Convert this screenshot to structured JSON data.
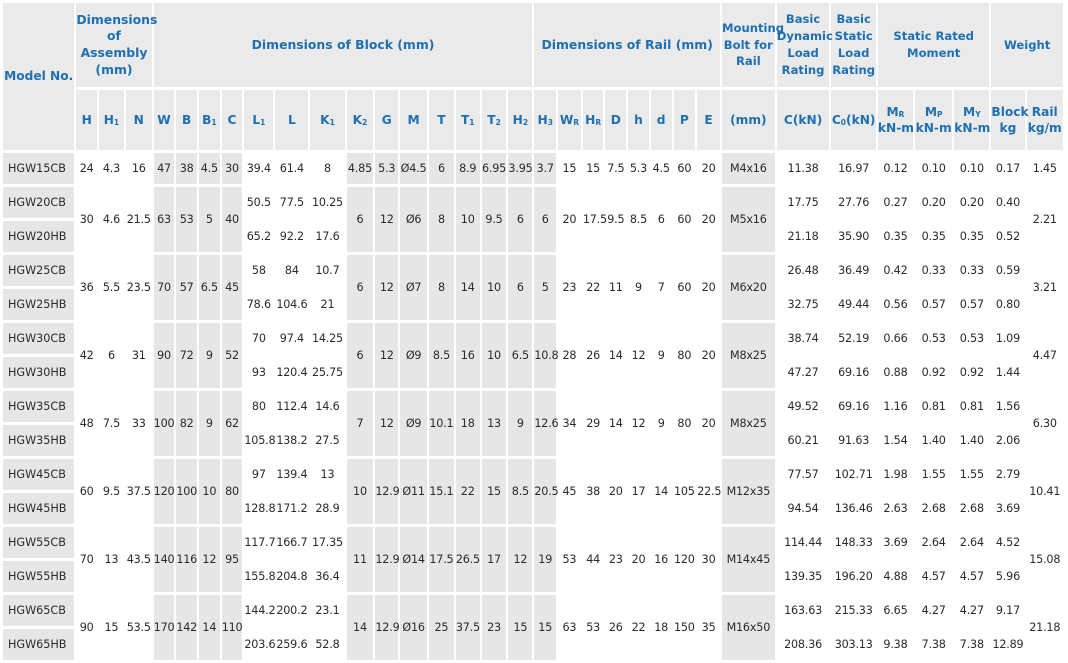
{
  "headers": {
    "model": "Model No.",
    "assembly": "Dimensions of Assembly (mm)",
    "block": "Dimensions of Block (mm)",
    "rail": "Dimensions of Rail (mm)",
    "bolt": "Mounting Bolt for Rail",
    "dynamic": "Basic Dynamic Load Rating",
    "static": "Basic Static Load Rating",
    "moment": "Static Rated Moment",
    "weight": "Weight",
    "mr": "M",
    "mr_sub": "R",
    "mp": "M",
    "mp_sub": "P",
    "my": "M",
    "my_sub": "Y",
    "block_w": "Block",
    "rail_w": "Rail",
    "col_H": "H",
    "col_H1": "H",
    "col_H1_sub": "1",
    "col_N": "N",
    "col_W": "W",
    "col_B": "B",
    "col_B1": "B",
    "col_B1_sub": "1",
    "col_C": "C",
    "col_L1": "L",
    "col_L1_sub": "1",
    "col_L": "L",
    "col_K1": "K",
    "col_K1_sub": "1",
    "col_K2": "K",
    "col_K2_sub": "2",
    "col_G": "G",
    "col_M": "M",
    "col_T": "T",
    "col_T1": "T",
    "col_T1_sub": "1",
    "col_T2": "T",
    "col_T2_sub": "2",
    "col_H2": "H",
    "col_H2_sub": "2",
    "col_H3": "H",
    "col_H3_sub": "3",
    "col_WR": "W",
    "col_WR_sub": "R",
    "col_HR": "H",
    "col_HR_sub": "R",
    "col_D": "D",
    "col_h": "h",
    "col_d": "d",
    "col_P": "P",
    "col_E": "E",
    "unit_mm": "(mm)",
    "unit_ckn": "C(kN)",
    "unit_c0": "C",
    "unit_c0_sub": "0",
    "unit_c0_kn": "(kN)",
    "unit_knm1": "kN-m",
    "unit_knm2": "kN-m",
    "unit_knm3": "kN-m",
    "unit_kg": "kg",
    "unit_kgm": "kg/m"
  },
  "rows": {
    "r0": {
      "model": "HGW15CB",
      "H": "24",
      "H1": "4.3",
      "N": "16",
      "W": "47",
      "B": "38",
      "B1": "4.5",
      "C": "30",
      "L1": "39.4",
      "L": "61.4",
      "K1": "8",
      "K2": "4.85",
      "G": "5.3",
      "M": "Ø4.5",
      "T": "6",
      "T1": "8.9",
      "T2": "6.95",
      "H2": "3.95",
      "H3": "3.7",
      "WR": "15",
      "HR": "15",
      "D": "7.5",
      "h": "5.3",
      "d": "4.5",
      "P": "60",
      "E": "20",
      "bolt": "M4x16",
      "C_kN": "11.38",
      "C0_kN": "16.97",
      "MR": "0.12",
      "MP": "0.10",
      "MY": "0.10",
      "block": "0.17",
      "rail": "1.45"
    },
    "r1": {
      "model": "HGW20CB",
      "H": "30",
      "H1": "4.6",
      "N": "21.5",
      "W": "63",
      "B": "53",
      "B1": "5",
      "C": "40",
      "L1": "50.5",
      "L": "77.5",
      "K1": "10.25",
      "K2": "6",
      "G": "12",
      "M": "Ø6",
      "T": "8",
      "T1": "10",
      "T2": "9.5",
      "H2": "6",
      "H3": "6",
      "WR": "20",
      "HR": "17.5",
      "D": "9.5",
      "h": "8.5",
      "d": "6",
      "P": "60",
      "E": "20",
      "bolt": "M5x16",
      "C_kN": "17.75",
      "C0_kN": "27.76",
      "MR": "0.27",
      "MP": "0.20",
      "MY": "0.20",
      "block": "0.40",
      "rail": "2.21"
    },
    "r2": {
      "model": "HGW20HB",
      "L1": "65.2",
      "L": "92.2",
      "K1": "17.6",
      "C_kN": "21.18",
      "C0_kN": "35.90",
      "MR": "0.35",
      "MP": "0.35",
      "MY": "0.35",
      "block": "0.52"
    },
    "r3": {
      "model": "HGW25CB",
      "H": "36",
      "H1": "5.5",
      "N": "23.5",
      "W": "70",
      "B": "57",
      "B1": "6.5",
      "C": "45",
      "L1": "58",
      "L": "84",
      "K1": "10.7",
      "K2": "6",
      "G": "12",
      "M": "Ø7",
      "T": "8",
      "T1": "14",
      "T2": "10",
      "H2": "6",
      "H3": "5",
      "WR": "23",
      "HR": "22",
      "D": "11",
      "h": "9",
      "d": "7",
      "P": "60",
      "E": "20",
      "bolt": "M6x20",
      "C_kN": "26.48",
      "C0_kN": "36.49",
      "MR": "0.42",
      "MP": "0.33",
      "MY": "0.33",
      "block": "0.59",
      "rail": "3.21"
    },
    "r4": {
      "model": "HGW25HB",
      "L1": "78.6",
      "L": "104.6",
      "K1": "21",
      "C_kN": "32.75",
      "C0_kN": "49.44",
      "MR": "0.56",
      "MP": "0.57",
      "MY": "0.57",
      "block": "0.80"
    },
    "r5": {
      "model": "HGW30CB",
      "H": "42",
      "H1": "6",
      "N": "31",
      "W": "90",
      "B": "72",
      "B1": "9",
      "C": "52",
      "L1": "70",
      "L": "97.4",
      "K1": "14.25",
      "K2": "6",
      "G": "12",
      "M": "Ø9",
      "T": "8.5",
      "T1": "16",
      "T2": "10",
      "H2": "6.5",
      "H3": "10.8",
      "WR": "28",
      "HR": "26",
      "D": "14",
      "h": "12",
      "d": "9",
      "P": "80",
      "E": "20",
      "bolt": "M8x25",
      "C_kN": "38.74",
      "C0_kN": "52.19",
      "MR": "0.66",
      "MP": "0.53",
      "MY": "0.53",
      "block": "1.09",
      "rail": "4.47"
    },
    "r6": {
      "model": "HGW30HB",
      "L1": "93",
      "L": "120.4",
      "K1": "25.75",
      "C_kN": "47.27",
      "C0_kN": "69.16",
      "MR": "0.88",
      "MP": "0.92",
      "MY": "0.92",
      "block": "1.44"
    },
    "r7": {
      "model": "HGW35CB",
      "H": "48",
      "H1": "7.5",
      "N": "33",
      "W": "100",
      "B": "82",
      "B1": "9",
      "C": "62",
      "L1": "80",
      "L": "112.4",
      "K1": "14.6",
      "K2": "7",
      "G": "12",
      "M": "Ø9",
      "T": "10.1",
      "T1": "18",
      "T2": "13",
      "H2": "9",
      "H3": "12.6",
      "WR": "34",
      "HR": "29",
      "D": "14",
      "h": "12",
      "d": "9",
      "P": "80",
      "E": "20",
      "bolt": "M8x25",
      "C_kN": "49.52",
      "C0_kN": "69.16",
      "MR": "1.16",
      "MP": "0.81",
      "MY": "0.81",
      "block": "1.56",
      "rail": "6.30"
    },
    "r8": {
      "model": "HGW35HB",
      "L1": "105.8",
      "L": "138.2",
      "K1": "27.5",
      "C_kN": "60.21",
      "C0_kN": "91.63",
      "MR": "1.54",
      "MP": "1.40",
      "MY": "1.40",
      "block": "2.06"
    },
    "r9": {
      "model": "HGW45CB",
      "H": "60",
      "H1": "9.5",
      "N": "37.5",
      "W": "120",
      "B": "100",
      "B1": "10",
      "C": "80",
      "L1": "97",
      "L": "139.4",
      "K1": "13",
      "K2": "10",
      "G": "12.9",
      "M": "Ø11",
      "T": "15.1",
      "T1": "22",
      "T2": "15",
      "H2": "8.5",
      "H3": "20.5",
      "WR": "45",
      "HR": "38",
      "D": "20",
      "h": "17",
      "d": "14",
      "P": "105",
      "E": "22.5",
      "bolt": "M12x35",
      "C_kN": "77.57",
      "C0_kN": "102.71",
      "MR": "1.98",
      "MP": "1.55",
      "MY": "1.55",
      "block": "2.79",
      "rail": "10.41"
    },
    "r10": {
      "model": "HGW45HB",
      "L1": "128.8",
      "L": "171.2",
      "K1": "28.9",
      "C_kN": "94.54",
      "C0_kN": "136.46",
      "MR": "2.63",
      "MP": "2.68",
      "MY": "2.68",
      "block": "3.69"
    },
    "r11": {
      "model": "HGW55CB",
      "H": "70",
      "H1": "13",
      "N": "43.5",
      "W": "140",
      "B": "116",
      "B1": "12",
      "C": "95",
      "L1": "117.7",
      "L": "166.7",
      "K1": "17.35",
      "K2": "11",
      "G": "12.9",
      "M": "Ø14",
      "T": "17.5",
      "T1": "26.5",
      "T2": "17",
      "H2": "12",
      "H3": "19",
      "WR": "53",
      "HR": "44",
      "D": "23",
      "h": "20",
      "d": "16",
      "P": "120",
      "E": "30",
      "bolt": "M14x45",
      "C_kN": "114.44",
      "C0_kN": "148.33",
      "MR": "3.69",
      "MP": "2.64",
      "MY": "2.64",
      "block": "4.52",
      "rail": "15.08"
    },
    "r12": {
      "model": "HGW55HB",
      "L1": "155.8",
      "L": "204.8",
      "K1": "36.4",
      "C_kN": "139.35",
      "C0_kN": "196.20",
      "MR": "4.88",
      "MP": "4.57",
      "MY": "4.57",
      "block": "5.96"
    },
    "r13": {
      "model": "HGW65CB",
      "H": "90",
      "H1": "15",
      "N": "53.5",
      "W": "170",
      "B": "142",
      "B1": "14",
      "C": "110",
      "L1": "144.2",
      "L": "200.2",
      "K1": "23.1",
      "K2": "14",
      "G": "12.9",
      "M": "Ø16",
      "T": "25",
      "T1": "37.5",
      "T2": "23",
      "H2": "15",
      "H3": "15",
      "WR": "63",
      "HR": "53",
      "D": "26",
      "h": "22",
      "d": "18",
      "P": "150",
      "E": "35",
      "bolt": "M16x50",
      "C_kN": "163.63",
      "C0_kN": "215.33",
      "MR": "6.65",
      "MP": "4.27",
      "MY": "4.27",
      "block": "9.17",
      "rail": "21.18"
    },
    "r14": {
      "model": "HGW65HB",
      "L1": "203.6",
      "L": "259.6",
      "K1": "52.8",
      "C_kN": "208.36",
      "C0_kN": "303.13",
      "MR": "9.38",
      "MP": "7.38",
      "MY": "7.38",
      "block": "12.89"
    }
  }
}
